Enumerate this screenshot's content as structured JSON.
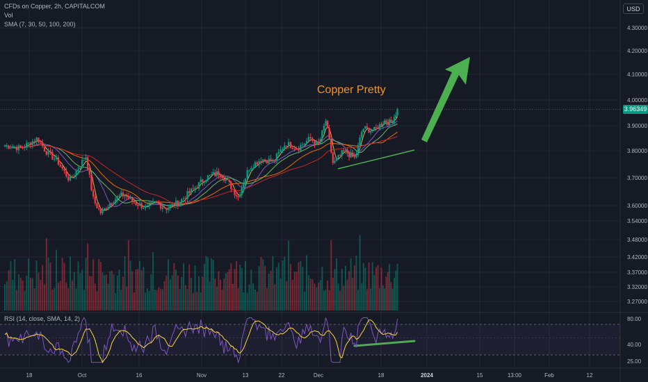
{
  "header": {
    "symbol_line": "CFDs on Copper, 2h, CAPITALCOM",
    "vol_label": "Vol",
    "sma_label": "SMA (7, 30, 50, 100, 200)",
    "currency_button": "USD"
  },
  "annotation": {
    "text": "Copper Pretty"
  },
  "rsi": {
    "label": "RSI (14, close, SMA, 14, 2)",
    "ticks": [
      {
        "value": 80,
        "label": "80.00"
      },
      {
        "value": 40,
        "label": "40.00"
      },
      {
        "value": 25,
        "label": "25.00"
      }
    ],
    "upper_band": 70,
    "lower_band": 30
  },
  "last_price": "3.96349",
  "colors": {
    "background": "#161a25",
    "candle_up": "#089981",
    "candle_down": "#f23645",
    "sma7": "#d1b64b",
    "sma30": "#7e57c2",
    "sma50": "#66bb6a",
    "sma100": "#ef6c00",
    "sma200": "#c62828",
    "rsi_line": "#7e57c2",
    "rsi_ma": "#fdd835",
    "arrow": "#4caf50",
    "annotation": "#f7941d"
  },
  "chart_data": [
    {
      "type": "candlestick",
      "title": "CFDs on Copper, 2h, CAPITALCOM",
      "currency": "USD",
      "price_axis": [
        "4.30000",
        "4.20000",
        "4.10000",
        "4.00000",
        "3.90000",
        "3.80000",
        "3.70000",
        "3.60000",
        "3.54000",
        "3.48000",
        "3.42000",
        "3.37000",
        "3.32000",
        "3.27000"
      ],
      "time_axis": [
        "18",
        "Oct",
        "16",
        "Nov",
        "13",
        "22",
        "Dec",
        "18",
        "2024",
        "15",
        "13:00",
        "Feb",
        "12"
      ],
      "grid": true,
      "close_path": [
        {
          "date": "Sep 12",
          "close": 3.82
        },
        {
          "date": "Sep 16",
          "close": 3.81
        },
        {
          "date": "Sep 18",
          "close": 3.83
        },
        {
          "date": "Sep 20",
          "close": 3.85
        },
        {
          "date": "Sep 22",
          "close": 3.8
        },
        {
          "date": "Sep 25",
          "close": 3.76
        },
        {
          "date": "Sep 28",
          "close": 3.69
        },
        {
          "date": "Oct 2",
          "close": 3.78
        },
        {
          "date": "Oct 4",
          "close": 3.62
        },
        {
          "date": "Oct 6",
          "close": 3.57
        },
        {
          "date": "Oct 9",
          "close": 3.62
        },
        {
          "date": "Oct 12",
          "close": 3.64
        },
        {
          "date": "Oct 15",
          "close": 3.61
        },
        {
          "date": "Oct 18",
          "close": 3.59
        },
        {
          "date": "Oct 20",
          "close": 3.61
        },
        {
          "date": "Oct 23",
          "close": 3.59
        },
        {
          "date": "Oct 26",
          "close": 3.61
        },
        {
          "date": "Oct 30",
          "close": 3.66
        },
        {
          "date": "Nov 2",
          "close": 3.7
        },
        {
          "date": "Nov 6",
          "close": 3.72
        },
        {
          "date": "Nov 9",
          "close": 3.67
        },
        {
          "date": "Nov 11",
          "close": 3.63
        },
        {
          "date": "Nov 14",
          "close": 3.74
        },
        {
          "date": "Nov 17",
          "close": 3.77
        },
        {
          "date": "Nov 20",
          "close": 3.76
        },
        {
          "date": "Nov 23",
          "close": 3.83
        },
        {
          "date": "Nov 26",
          "close": 3.81
        },
        {
          "date": "Nov 29",
          "close": 3.85
        },
        {
          "date": "Dec 1",
          "close": 3.82
        },
        {
          "date": "Dec 3",
          "close": 3.92
        },
        {
          "date": "Dec 5",
          "close": 3.75
        },
        {
          "date": "Dec 8",
          "close": 3.8
        },
        {
          "date": "Dec 11",
          "close": 3.77
        },
        {
          "date": "Dec 13",
          "close": 3.89
        },
        {
          "date": "Dec 16",
          "close": 3.88
        },
        {
          "date": "Dec 19",
          "close": 3.92
        },
        {
          "date": "Dec 21",
          "close": 3.91
        },
        {
          "date": "Dec 23",
          "close": 3.96
        }
      ],
      "last_price": 3.96349
    }
  ]
}
